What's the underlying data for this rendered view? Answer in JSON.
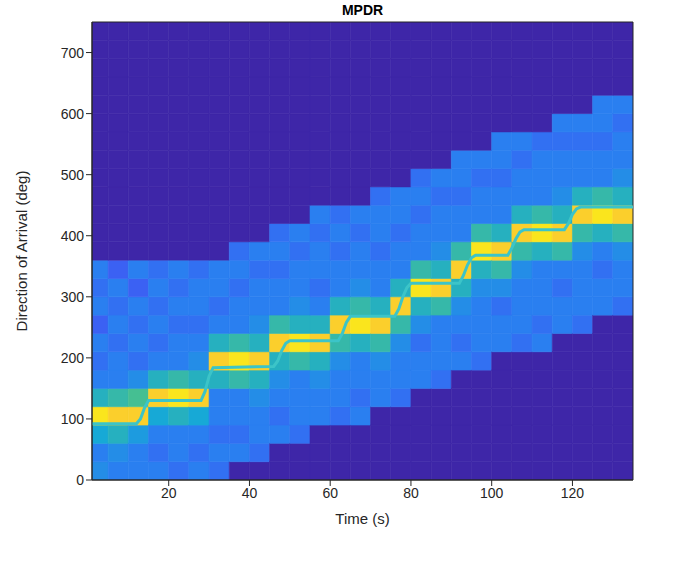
{
  "chart_data": {
    "type": "heatmap",
    "title": "MPDR",
    "x_label": "Time (s)",
    "y_label": "Direction of Arrival (deg)",
    "xlim": [
      1,
      135
    ],
    "xticks": [
      20,
      40,
      60,
      80,
      100,
      120
    ],
    "ylim": [
      0,
      750
    ],
    "yticks": [
      0,
      100,
      200,
      300,
      400,
      500,
      600,
      700
    ],
    "grid": false,
    "color": "parula",
    "color_range": [
      0,
      1
    ],
    "x_bins": [
      0,
      5,
      10,
      15,
      20,
      25,
      30,
      35,
      40,
      45,
      50,
      55,
      60,
      65,
      70,
      75,
      80,
      85,
      90,
      95,
      100,
      105,
      110,
      115,
      120,
      125,
      130,
      135
    ],
    "y_bins": [
      0,
      30,
      60,
      90,
      120,
      150,
      180,
      210,
      240,
      270,
      300,
      330,
      360,
      390,
      420,
      450,
      480,
      510,
      540,
      570,
      600,
      630,
      660,
      690,
      720,
      750
    ],
    "cells": [
      [
        0.35,
        0.3,
        0.45,
        0.95,
        0.5,
        0.3,
        0.25,
        0.3,
        0.2,
        0.3,
        0.25,
        0.3,
        null,
        null,
        null,
        null,
        null,
        null,
        null,
        null,
        null,
        null,
        null,
        null,
        null
      ],
      [
        0.3,
        0.35,
        0.5,
        0.9,
        0.55,
        0.3,
        0.3,
        0.25,
        0.3,
        0.25,
        0.3,
        0.2,
        null,
        null,
        null,
        null,
        null,
        null,
        null,
        null,
        null,
        null,
        null,
        null,
        null
      ],
      [
        0.3,
        0.3,
        0.4,
        0.9,
        0.6,
        0.35,
        0.25,
        0.3,
        0.25,
        0.3,
        0.2,
        0.3,
        null,
        null,
        null,
        null,
        null,
        null,
        null,
        null,
        null,
        null,
        null,
        null,
        null
      ],
      [
        0.3,
        0.25,
        0.3,
        0.45,
        0.9,
        0.5,
        0.3,
        0.25,
        0.3,
        0.25,
        0.3,
        0.25,
        null,
        null,
        null,
        null,
        null,
        null,
        null,
        null,
        null,
        null,
        null,
        null,
        null
      ],
      [
        0.25,
        0.3,
        0.3,
        0.5,
        0.95,
        0.55,
        0.3,
        0.3,
        0.25,
        0.3,
        0.25,
        0.3,
        null,
        null,
        null,
        null,
        null,
        null,
        null,
        null,
        null,
        null,
        null,
        null,
        null
      ],
      [
        0.3,
        0.25,
        0.3,
        0.45,
        0.9,
        0.5,
        0.35,
        0.3,
        0.25,
        0.3,
        0.3,
        0.25,
        null,
        null,
        null,
        null,
        null,
        null,
        null,
        null,
        null,
        null,
        null,
        null,
        null
      ],
      [
        0.25,
        0.3,
        0.25,
        0.3,
        0.3,
        0.5,
        0.9,
        0.5,
        0.3,
        0.25,
        0.3,
        0.3,
        null,
        null,
        null,
        null,
        null,
        null,
        null,
        null,
        null,
        null,
        null,
        null,
        null
      ],
      [
        null,
        0.3,
        0.25,
        0.3,
        0.3,
        0.55,
        0.95,
        0.55,
        0.3,
        0.3,
        0.25,
        0.3,
        0.25,
        null,
        null,
        null,
        null,
        null,
        null,
        null,
        null,
        null,
        null,
        null,
        null
      ],
      [
        null,
        0.25,
        0.3,
        0.3,
        0.35,
        0.5,
        0.9,
        0.5,
        0.35,
        0.3,
        0.3,
        0.25,
        0.3,
        null,
        null,
        null,
        null,
        null,
        null,
        null,
        null,
        null,
        null,
        null,
        null
      ],
      [
        null,
        null,
        0.3,
        0.25,
        0.3,
        0.35,
        0.5,
        0.9,
        0.55,
        0.3,
        0.3,
        0.25,
        0.3,
        0.25,
        null,
        null,
        null,
        null,
        null,
        null,
        null,
        null,
        null,
        null,
        null
      ],
      [
        null,
        null,
        0.25,
        0.3,
        0.3,
        0.3,
        0.55,
        0.95,
        0.5,
        0.35,
        0.3,
        0.3,
        0.25,
        0.3,
        null,
        null,
        null,
        null,
        null,
        null,
        null,
        null,
        null,
        null,
        null
      ],
      [
        null,
        null,
        null,
        0.3,
        0.3,
        0.35,
        0.5,
        0.9,
        0.5,
        0.3,
        0.25,
        0.3,
        0.3,
        0.25,
        0.3,
        null,
        null,
        null,
        null,
        null,
        null,
        null,
        null,
        null,
        null
      ],
      [
        null,
        null,
        null,
        0.25,
        0.3,
        0.3,
        0.35,
        0.55,
        0.9,
        0.5,
        0.3,
        0.3,
        0.25,
        0.3,
        0.25,
        null,
        null,
        null,
        null,
        null,
        null,
        null,
        null,
        null,
        null
      ],
      [
        null,
        null,
        null,
        0.3,
        0.25,
        0.3,
        0.3,
        0.5,
        0.95,
        0.55,
        0.35,
        0.3,
        0.3,
        0.25,
        0.3,
        null,
        null,
        null,
        null,
        null,
        null,
        null,
        null,
        null,
        null
      ],
      [
        null,
        null,
        null,
        null,
        0.3,
        0.3,
        0.35,
        0.55,
        0.9,
        0.5,
        0.3,
        0.3,
        0.25,
        0.3,
        0.3,
        0.25,
        null,
        null,
        null,
        null,
        null,
        null,
        null,
        null,
        null
      ],
      [
        null,
        null,
        null,
        null,
        0.25,
        0.3,
        0.3,
        0.35,
        0.55,
        0.9,
        0.5,
        0.3,
        0.3,
        0.25,
        0.3,
        0.3,
        null,
        null,
        null,
        null,
        null,
        null,
        null,
        null,
        null
      ],
      [
        null,
        null,
        null,
        null,
        null,
        0.3,
        0.3,
        0.25,
        0.35,
        0.5,
        0.95,
        0.55,
        0.3,
        0.3,
        0.25,
        0.3,
        0.25,
        null,
        null,
        null,
        null,
        null,
        null,
        null,
        null
      ],
      [
        null,
        null,
        null,
        null,
        null,
        0.25,
        0.3,
        0.3,
        0.3,
        0.55,
        0.9,
        0.5,
        0.35,
        0.3,
        0.3,
        0.25,
        0.3,
        null,
        null,
        null,
        null,
        null,
        null,
        null,
        null
      ],
      [
        null,
        null,
        null,
        null,
        null,
        null,
        0.3,
        0.25,
        0.3,
        0.35,
        0.5,
        0.9,
        0.55,
        0.3,
        0.3,
        0.25,
        0.3,
        0.3,
        null,
        null,
        null,
        null,
        null,
        null,
        null
      ],
      [
        null,
        null,
        null,
        null,
        null,
        null,
        0.25,
        0.3,
        0.3,
        0.3,
        0.35,
        0.5,
        0.95,
        0.55,
        0.3,
        0.3,
        0.25,
        0.3,
        null,
        null,
        null,
        null,
        null,
        null,
        null
      ],
      [
        null,
        null,
        null,
        null,
        null,
        null,
        null,
        0.3,
        0.3,
        0.25,
        0.35,
        0.55,
        0.9,
        0.5,
        0.3,
        0.3,
        0.25,
        0.3,
        0.3,
        null,
        null,
        null,
        null,
        null,
        null
      ],
      [
        null,
        null,
        null,
        null,
        null,
        null,
        null,
        0.25,
        0.3,
        0.3,
        0.3,
        0.35,
        0.55,
        0.9,
        0.5,
        0.3,
        0.3,
        0.25,
        0.3,
        null,
        null,
        null,
        null,
        null,
        null
      ],
      [
        null,
        null,
        null,
        null,
        null,
        null,
        null,
        0.3,
        0.25,
        0.3,
        0.3,
        0.3,
        0.5,
        0.95,
        0.55,
        0.3,
        0.3,
        0.3,
        0.25,
        null,
        null,
        null,
        null,
        null,
        null
      ],
      [
        null,
        null,
        null,
        null,
        null,
        null,
        null,
        null,
        0.3,
        0.3,
        0.25,
        0.3,
        0.55,
        0.9,
        0.5,
        0.35,
        0.3,
        0.3,
        0.25,
        0.3,
        null,
        null,
        null,
        null,
        null
      ],
      [
        null,
        null,
        null,
        null,
        null,
        null,
        null,
        null,
        0.25,
        0.3,
        0.3,
        0.3,
        0.35,
        0.55,
        0.9,
        0.5,
        0.3,
        0.3,
        0.25,
        0.3,
        null,
        null,
        null,
        null,
        null
      ],
      [
        null,
        null,
        null,
        null,
        null,
        null,
        null,
        null,
        null,
        0.3,
        0.3,
        0.25,
        0.3,
        0.5,
        0.95,
        0.55,
        0.3,
        0.3,
        0.25,
        0.3,
        0.3,
        null,
        null,
        null,
        null
      ],
      [
        null,
        null,
        null,
        null,
        null,
        null,
        null,
        null,
        null,
        0.25,
        0.3,
        0.3,
        0.35,
        0.55,
        0.9,
        0.5,
        0.35,
        0.3,
        0.3,
        0.25,
        0.3,
        null,
        null,
        null,
        null
      ]
    ],
    "line": {
      "color": "#3cc4c8",
      "x": [
        1,
        12,
        13,
        14,
        15,
        28,
        29,
        30,
        31,
        46,
        47,
        48,
        49,
        50,
        62,
        63,
        64,
        65,
        76,
        77,
        78,
        79,
        80,
        92,
        93,
        94,
        95,
        96,
        104,
        105,
        106,
        107,
        108,
        118,
        119,
        120,
        121,
        122,
        135
      ],
      "values": [
        92,
        92,
        100,
        118,
        130,
        130,
        145,
        170,
        184,
        186,
        195,
        212,
        224,
        228,
        228,
        240,
        258,
        268,
        268,
        280,
        300,
        315,
        322,
        322,
        335,
        352,
        364,
        368,
        368,
        380,
        395,
        406,
        410,
        410,
        420,
        435,
        444,
        447,
        447
      ]
    }
  }
}
